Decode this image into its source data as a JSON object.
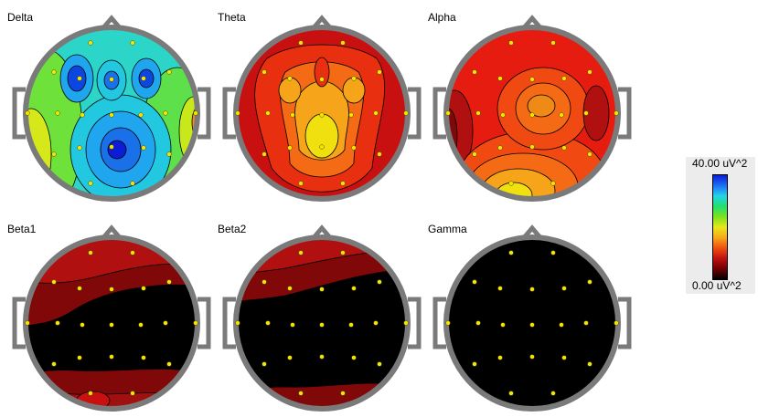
{
  "maps": [
    {
      "label": "Delta",
      "palette": "delta",
      "electrodes": "full"
    },
    {
      "label": "Theta",
      "palette": "theta",
      "electrodes": "full"
    },
    {
      "label": "Alpha",
      "palette": "alpha",
      "electrodes": "full"
    },
    {
      "label": "Beta1",
      "palette": "beta1",
      "electrodes": "full"
    },
    {
      "label": "Beta2",
      "palette": "beta2",
      "electrodes": "full"
    },
    {
      "label": "Gamma",
      "palette": "gamma",
      "electrodes": "full"
    }
  ],
  "scale": {
    "max_label": "40.00 uV^2",
    "min_label": "0.00 uV^2",
    "gradient": [
      "#0b1dd6",
      "#1d6ff5",
      "#22d4e8",
      "#21e070",
      "#7ae21e",
      "#e8e81a",
      "#f6a81a",
      "#f05010",
      "#c01010",
      "#700000",
      "#000000"
    ]
  },
  "colors": {
    "head_outline": "#7a7a7a",
    "electrode": "#f2e600"
  }
}
